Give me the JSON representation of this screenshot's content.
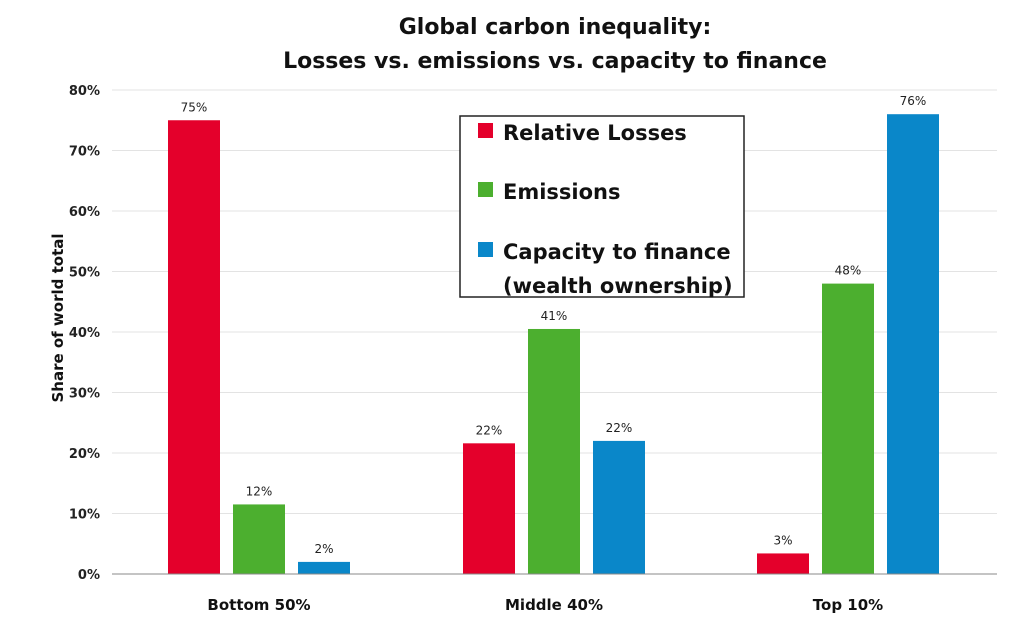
{
  "chart_data": {
    "type": "bar",
    "title": [
      "Global carbon inequality:",
      "Losses vs. emissions vs. capacity to finance"
    ],
    "ylabel": "Share of world total",
    "xlabel": "",
    "categories": [
      "Bottom 50%",
      "Middle 40%",
      "Top 10%"
    ],
    "yticks": [
      "0%",
      "10%",
      "20%",
      "30%",
      "40%",
      "50%",
      "60%",
      "70%",
      "80%"
    ],
    "ylim": [
      0,
      80
    ],
    "grid": true,
    "legend_position": "top-center",
    "series": [
      {
        "name": "Relative Losses",
        "color": "#e4002b",
        "values": [
          75,
          21.6,
          3.4
        ],
        "labels": [
          "75%",
          "22%",
          "3%"
        ]
      },
      {
        "name": "Emissions",
        "color": "#4caf2f",
        "values": [
          11.5,
          40.5,
          48
        ],
        "labels": [
          "12%",
          "41%",
          "48%"
        ]
      },
      {
        "name": "Capacity to finance (wealth ownership)",
        "legend_lines": [
          "Capacity to finance",
          "(wealth ownership)"
        ],
        "color": "#0a87c9",
        "values": [
          2,
          22,
          76
        ],
        "labels": [
          "2%",
          "22%",
          "76%"
        ]
      }
    ]
  }
}
